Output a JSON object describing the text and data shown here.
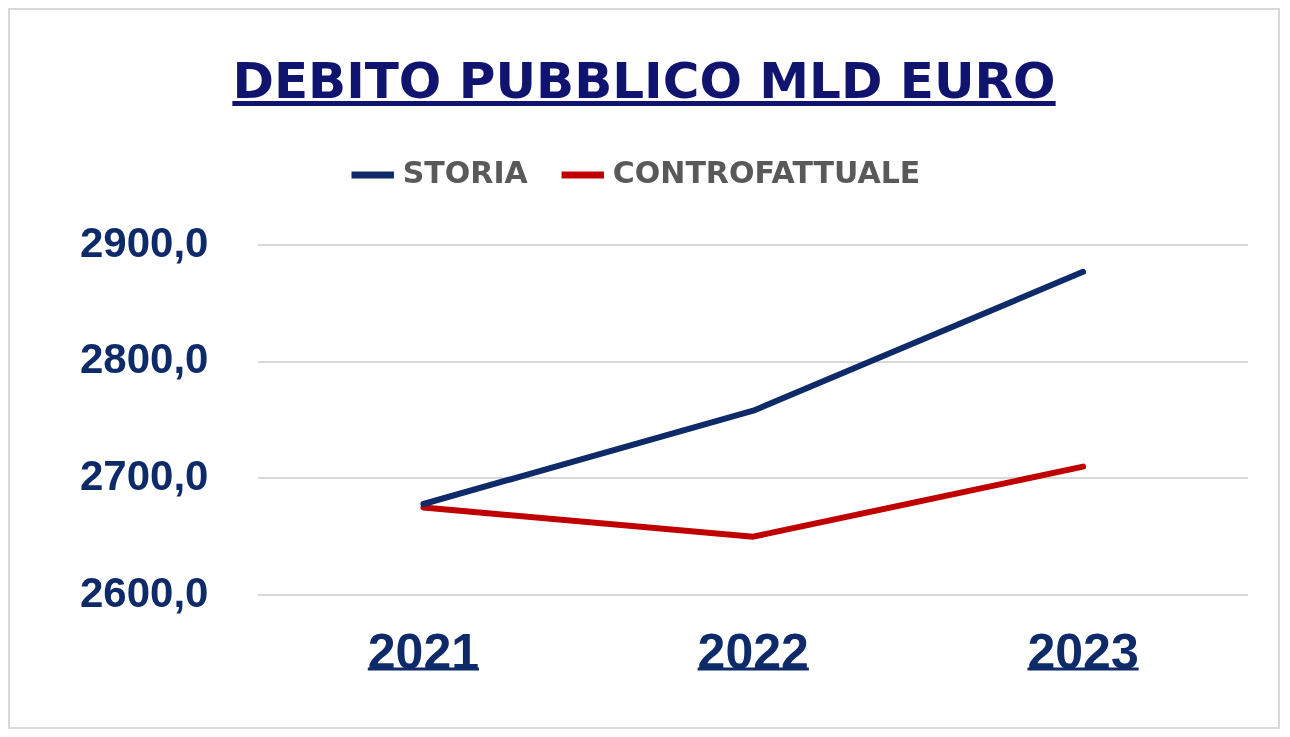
{
  "chart_data": {
    "type": "line",
    "title": "DEBITO PUBBLICO MLD EURO",
    "categories": [
      "2021",
      "2022",
      "2023"
    ],
    "series": [
      {
        "name": "STORIA",
        "color": "#0f2a68",
        "values": [
          2678,
          2758,
          2877
        ]
      },
      {
        "name": "CONTROFATTUALE",
        "color": "#c00000",
        "values": [
          2675,
          2650,
          2710
        ]
      }
    ],
    "ylim": [
      2600,
      2900
    ],
    "yticks": [
      {
        "value": 2600,
        "label": "2600,0"
      },
      {
        "value": 2700,
        "label": "2700,0"
      },
      {
        "value": 2800,
        "label": "2800,0"
      },
      {
        "value": 2900,
        "label": "2900,0"
      }
    ],
    "grid": "y",
    "legend": "top",
    "marker": "none",
    "line_style": "solid"
  }
}
